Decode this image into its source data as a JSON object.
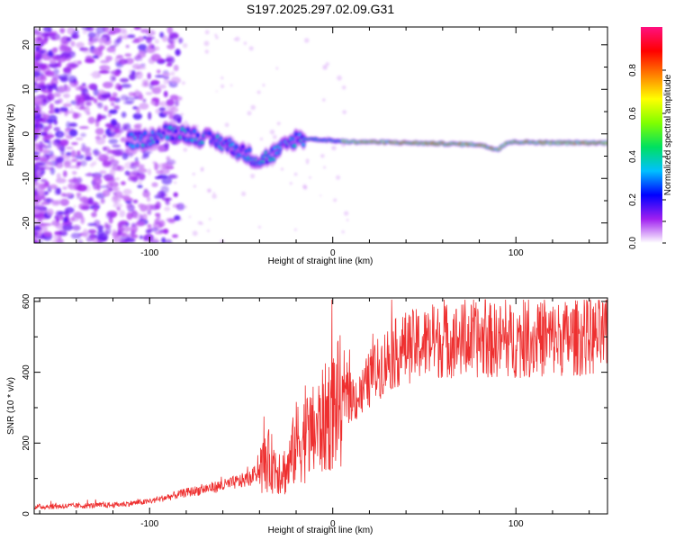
{
  "title": "S197.2025.297.02.09.G31",
  "chart_data": [
    {
      "type": "heatmap",
      "xlabel": "Height of straight line (km)",
      "ylabel": "Frequency (Hz)",
      "xlim": [
        -163,
        150
      ],
      "ylim": [
        -24.5,
        24
      ],
      "xticks": [
        -100,
        0,
        100
      ],
      "yticks": [
        -20,
        -10,
        0,
        10,
        20
      ],
      "colorbar": {
        "label": "Normalized spectral amplitude",
        "range": [
          0,
          1
        ],
        "ticks": [
          "0.0",
          "0.2",
          "0.4",
          "0.6",
          "0.8"
        ],
        "colors": [
          "#ffffff",
          "#a020f0",
          "#0000ff",
          "#00c0ff",
          "#00e060",
          "#80ff00",
          "#ffff00",
          "#ff8000",
          "#ff0000",
          "#ff1080"
        ]
      },
      "ridge": {
        "description": "dominant frequency track",
        "x": [
          -110,
          -100,
          -90,
          -80,
          -70,
          -60,
          -50,
          -40,
          -30,
          -20,
          -10,
          0,
          10,
          20,
          40,
          60,
          80,
          85,
          90,
          95,
          100,
          120,
          150
        ],
        "y": [
          -1.5,
          -1,
          0.5,
          0,
          -1,
          -2,
          -4,
          -6,
          -4,
          -1,
          -1.2,
          -1.5,
          -1.8,
          -1.8,
          -2,
          -2.2,
          -2.4,
          -3,
          -3.5,
          -2,
          -1.8,
          -2,
          -2
        ]
      }
    },
    {
      "type": "line",
      "xlabel": "Height of straight line (km)",
      "ylabel": "SNR (10 * v/v)",
      "xlim": [
        -163,
        150
      ],
      "ylim": [
        0,
        610
      ],
      "xticks": [
        -100,
        0,
        100
      ],
      "yticks": [
        0,
        200,
        400,
        600
      ],
      "color": "#ee3030",
      "envelope": {
        "x": [
          -163,
          -120,
          -100,
          -80,
          -60,
          -45,
          -35,
          -30,
          -25,
          -20,
          -10,
          -5,
          0,
          5,
          10,
          15,
          20,
          30,
          40,
          50,
          60,
          80,
          100,
          120,
          150
        ],
        "y": [
          20,
          25,
          35,
          60,
          80,
          100,
          150,
          130,
          120,
          200,
          230,
          260,
          300,
          320,
          330,
          330,
          380,
          440,
          470,
          480,
          490,
          490,
          490,
          495,
          500
        ]
      }
    }
  ]
}
